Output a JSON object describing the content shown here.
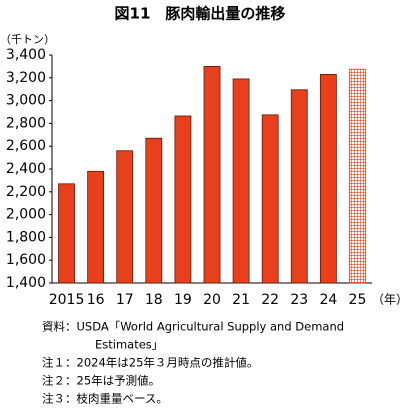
{
  "chart_data": {
    "type": "bar",
    "title": "図11　豚肉輸出量の推移",
    "y_label": "（千トン）",
    "x_label": "（年）",
    "categories": [
      "2015",
      "16",
      "17",
      "18",
      "19",
      "20",
      "21",
      "22",
      "23",
      "24",
      "25"
    ],
    "values": [
      2270,
      2380,
      2560,
      2670,
      2865,
      3300,
      3190,
      2875,
      3095,
      3230,
      3275
    ],
    "color": "#e8401c",
    "edge_color": "#5a1a0a",
    "hatched": [
      10
    ],
    "ylim": [
      1400,
      3400
    ],
    "yticks": [
      {
        "value": 1400,
        "label": "1,400"
      },
      {
        "value": 1600,
        "label": "1,600"
      },
      {
        "value": 1800,
        "label": "1,800"
      },
      {
        "value": 2000,
        "label": "2,000"
      },
      {
        "value": 2200,
        "label": "2,200"
      },
      {
        "value": 2400,
        "label": "2,400"
      },
      {
        "value": 2600,
        "label": "2,600"
      },
      {
        "value": 2800,
        "label": "2,800"
      },
      {
        "value": 3000,
        "label": "3,000"
      },
      {
        "value": 3200,
        "label": "3,200"
      },
      {
        "value": 3400,
        "label": "3,400"
      }
    ],
    "grid": false,
    "notes": [
      "資料：USDA「World Agricultural Supply and Demand",
      "Estimates」",
      "注１：2024年は25年３月時点の推計値。",
      "注２：25年は予測値。",
      "注３：枝肉重量ベース。"
    ]
  }
}
